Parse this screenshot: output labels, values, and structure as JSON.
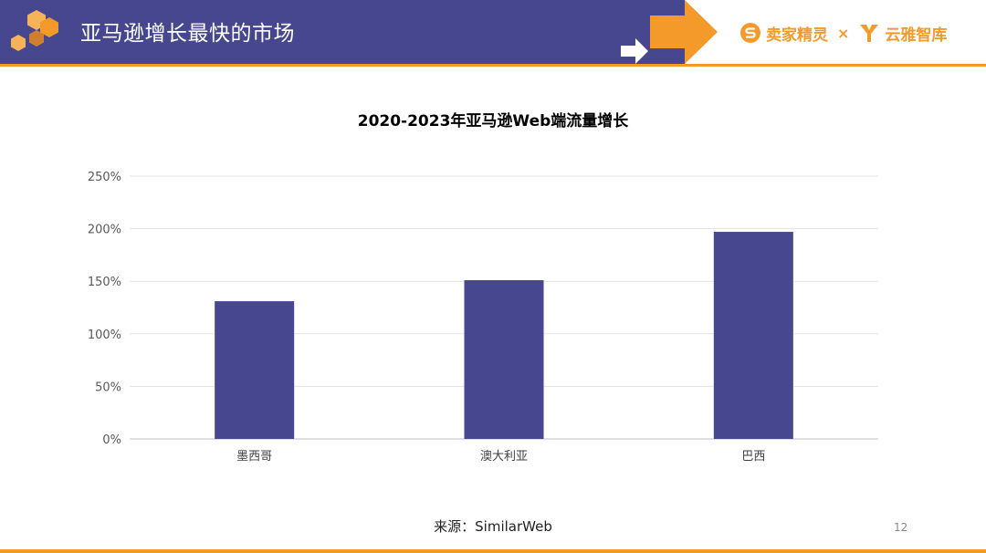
{
  "header": {
    "title": "亚马逊增长最快的市场",
    "brands": [
      {
        "name": "卖家精灵",
        "icon": "s-logo-icon"
      },
      {
        "name": "云雅智库",
        "icon": "y-logo-icon"
      }
    ],
    "separator": "×"
  },
  "colors": {
    "header_band": "#47478f",
    "accent": "#f39a2a",
    "bar": "#47478f"
  },
  "chart_data": {
    "type": "bar",
    "title": "2020-2023年亚马逊Web端流量增长",
    "categories": [
      "墨西哥",
      "澳大利亚",
      "巴西"
    ],
    "values": [
      131,
      151,
      197
    ],
    "unit": "%",
    "ylim": [
      0,
      250
    ],
    "yticks": [
      0,
      50,
      100,
      150,
      200,
      250
    ],
    "ytick_labels": [
      "0%",
      "50%",
      "100%",
      "150%",
      "200%",
      "250%"
    ],
    "xlabel": "",
    "ylabel": "",
    "grid": true,
    "legend": "none"
  },
  "source": "来源：SimilarWeb",
  "page_number": "12"
}
